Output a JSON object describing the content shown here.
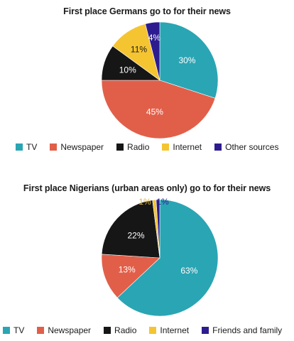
{
  "chart_data": [
    {
      "type": "pie",
      "title": "First place Germans go to for their news",
      "legend_position": "bottom",
      "slices": [
        {
          "name": "TV",
          "value": 30,
          "label": "30%",
          "color": "#2aa5b4"
        },
        {
          "name": "Newspaper",
          "value": 45,
          "label": "45%",
          "color": "#e15f49"
        },
        {
          "name": "Radio",
          "value": 10,
          "label": "10%",
          "color": "#161616"
        },
        {
          "name": "Internet",
          "value": 11,
          "label": "11%",
          "color": "#f5c431"
        },
        {
          "name": "Other sources",
          "value": 4,
          "label": "4%",
          "color": "#2d1c8f"
        }
      ],
      "legend": [
        "TV",
        "Newspaper",
        "Radio",
        "Internet",
        "Other sources"
      ]
    },
    {
      "type": "pie",
      "title": "First place Nigerians (urban areas only) go to for their news",
      "legend_position": "bottom",
      "slices": [
        {
          "name": "TV",
          "value": 63,
          "label": "63%",
          "color": "#2aa5b4"
        },
        {
          "name": "Newspaper",
          "value": 13,
          "label": "13%",
          "color": "#e15f49"
        },
        {
          "name": "Radio",
          "value": 22,
          "label": "22%",
          "color": "#161616"
        },
        {
          "name": "Internet",
          "value": 1,
          "label": "1%",
          "color": "#f5c431"
        },
        {
          "name": "Friends and family",
          "value": 1,
          "label": "1%",
          "color": "#2d1c8f"
        }
      ],
      "legend": [
        "TV",
        "Newspaper",
        "Radio",
        "Internet",
        "Friends and family"
      ]
    }
  ]
}
